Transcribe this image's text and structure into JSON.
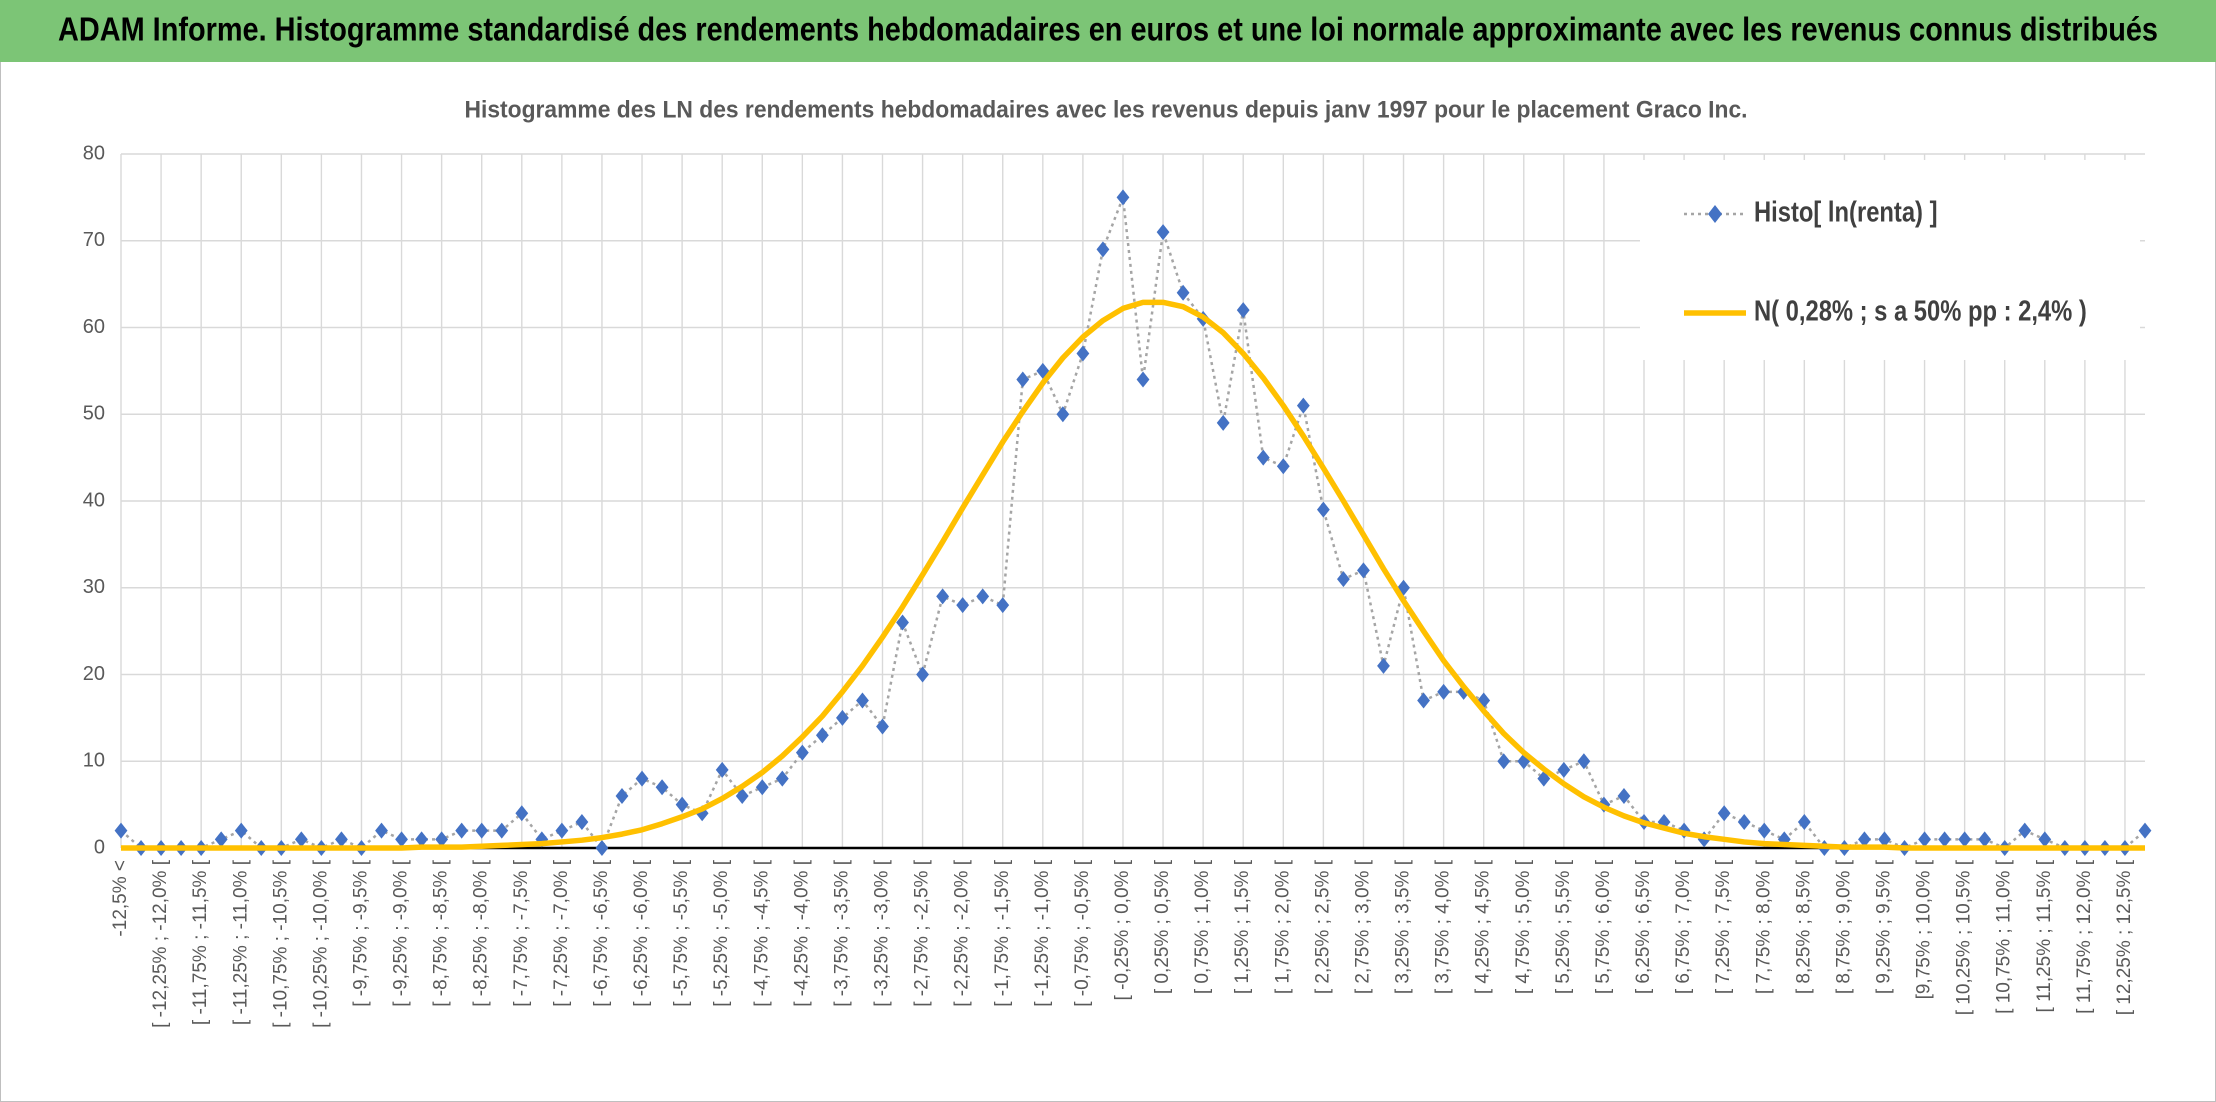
{
  "header": {
    "title": "ADAM Informe. Histogramme standardisé des rendements hebdomadaires en euros et une loi normale approximante avec les revenus connus distribués"
  },
  "chart_data": {
    "type": "line",
    "title": "Histogramme des LN des rendements hebdomadaires avec les revenus depuis janv 1997 pour le placement Graco Inc.",
    "categories": [
      "-12,5% <",
      null,
      "[ -12,25% ; -12,0% [",
      null,
      "[ -11,75% ; -11,5% [",
      null,
      "[ -11,25% ; -11,0% [",
      null,
      "[ -10,75% ; -10,5% [",
      null,
      "[ -10,25% ; -10,0% [",
      null,
      "[ -9,75% ; -9,5% [",
      null,
      "[ -9,25% ; -9,0% [",
      null,
      "[ -8,75% ; -8,5% [",
      null,
      "[ -8,25% ; -8,0% [",
      null,
      "[ -7,75% ; -7,5% [",
      null,
      "[ -7,25% ; -7,0% [",
      null,
      "[ -6,75% ; -6,5% [",
      null,
      "[ -6,25% ; -6,0% [",
      null,
      "[ -5,75% ; -5,5% [",
      null,
      "[ -5,25% ; -5,0% [",
      null,
      "[ -4,75% ; -4,5% [",
      null,
      "[ -4,25% ; -4,0% [",
      null,
      "[ -3,75% ; -3,5% [",
      null,
      "[ -3,25% ; -3,0% [",
      null,
      "[ -2,75% ; -2,5% [",
      null,
      "[ -2,25% ; -2,0% [",
      null,
      "[ -1,75% ; -1,5% [",
      null,
      "[ -1,25% ; -1,0% [",
      null,
      "[ -0,75% ; -0,5% [",
      null,
      "[ -0,25% ; 0,0% [",
      null,
      "[ 0,25% ; 0,5% [",
      null,
      "[ 0,75% ; 1,0% [",
      null,
      "[ 1,25% ; 1,5% [",
      null,
      "[ 1,75% ; 2,0% [",
      null,
      "[ 2,25% ; 2,5% [",
      null,
      "[ 2,75% ; 3,0% [",
      null,
      "[ 3,25% ; 3,5% [",
      null,
      "[ 3,75% ; 4,0% [",
      null,
      "[ 4,25% ; 4,5% [",
      null,
      "[ 4,75% ; 5,0% [",
      null,
      "[ 5,25% ; 5,5% [",
      null,
      "[ 5,75% ; 6,0% [",
      null,
      "[ 6,25% ; 6,5% [",
      null,
      "[ 6,75% ; 7,0% [",
      null,
      "[ 7,25% ; 7,5% [",
      null,
      "[ 7,75% ; 8,0% [",
      null,
      "[ 8,25% ; 8,5% [",
      null,
      "[ 8,75% ; 9,0% [",
      null,
      "[ 9,25% ; 9,5% [",
      null,
      "[9,75% ; 10,0% [",
      null,
      "[ 10,25% ; 10,5% [",
      null,
      "[ 10,75% ; 11,0% [",
      null,
      "[ 11,25% ; 11,5% [",
      null,
      "[ 11,75% ; 12,0% [",
      null,
      "[ 12,25% ; 12,5% [",
      null
    ],
    "series": [
      {
        "name": "Histo[ ln(renta) ]",
        "color": "#4472c4",
        "line_color": "#a5a5a5",
        "line_style": "dotted",
        "marker": "diamond",
        "values": [
          2,
          0,
          0,
          0,
          0,
          1,
          2,
          0,
          0,
          1,
          0,
          1,
          0,
          2,
          1,
          1,
          1,
          2,
          2,
          2,
          4,
          1,
          2,
          3,
          0,
          6,
          8,
          7,
          5,
          4,
          9,
          6,
          7,
          8,
          11,
          13,
          15,
          17,
          14,
          26,
          20,
          29,
          28,
          29,
          28,
          54,
          55,
          50,
          57,
          69,
          75,
          54,
          71,
          64,
          61,
          49,
          62,
          45,
          44,
          51,
          39,
          31,
          32,
          21,
          30,
          17,
          18,
          18,
          17,
          10,
          10,
          8,
          9,
          10,
          5,
          6,
          3,
          3,
          2,
          1,
          4,
          3,
          2,
          1,
          3,
          0,
          0,
          1,
          1,
          0,
          1,
          1,
          1,
          1,
          0,
          2,
          1,
          0,
          0,
          0,
          0,
          2
        ]
      },
      {
        "name": "N( 0,28% ; s a 50% pp : 2,4% )",
        "color": "#ffc000",
        "line_style": "solid",
        "marker": "none",
        "values": [
          0,
          0,
          0,
          0,
          0,
          0,
          0,
          0,
          0,
          0,
          0,
          0,
          0,
          0,
          0,
          0.1,
          0.1,
          0.1,
          0.2,
          0.3,
          0.4,
          0.5,
          0.7,
          0.9,
          1.2,
          1.6,
          2.1,
          2.8,
          3.6,
          4.5,
          5.7,
          7.1,
          8.7,
          10.6,
          12.8,
          15.2,
          18.0,
          21.0,
          24.3,
          27.8,
          31.5,
          35.3,
          39.2,
          43.0,
          46.8,
          50.3,
          53.6,
          56.5,
          58.9,
          60.8,
          62.2,
          62.9,
          62.9,
          62.4,
          61.2,
          59.4,
          57.0,
          54.2,
          51.0,
          47.5,
          43.8,
          40.0,
          36.1,
          32.2,
          28.5,
          25.0,
          21.6,
          18.6,
          15.8,
          13.2,
          11.0,
          9.1,
          7.4,
          5.9,
          4.7,
          3.7,
          2.9,
          2.3,
          1.7,
          1.3,
          1.0,
          0.7,
          0.5,
          0.4,
          0.3,
          0.2,
          0.1,
          0.1,
          0.1,
          0,
          0,
          0,
          0,
          0,
          0,
          0,
          0,
          0,
          0,
          0,
          0,
          0
        ]
      }
    ],
    "ylim": [
      0,
      80
    ],
    "yticks": [
      0,
      10,
      20,
      30,
      40,
      50,
      60,
      70,
      80
    ],
    "grid": true,
    "legend": "top-right"
  }
}
